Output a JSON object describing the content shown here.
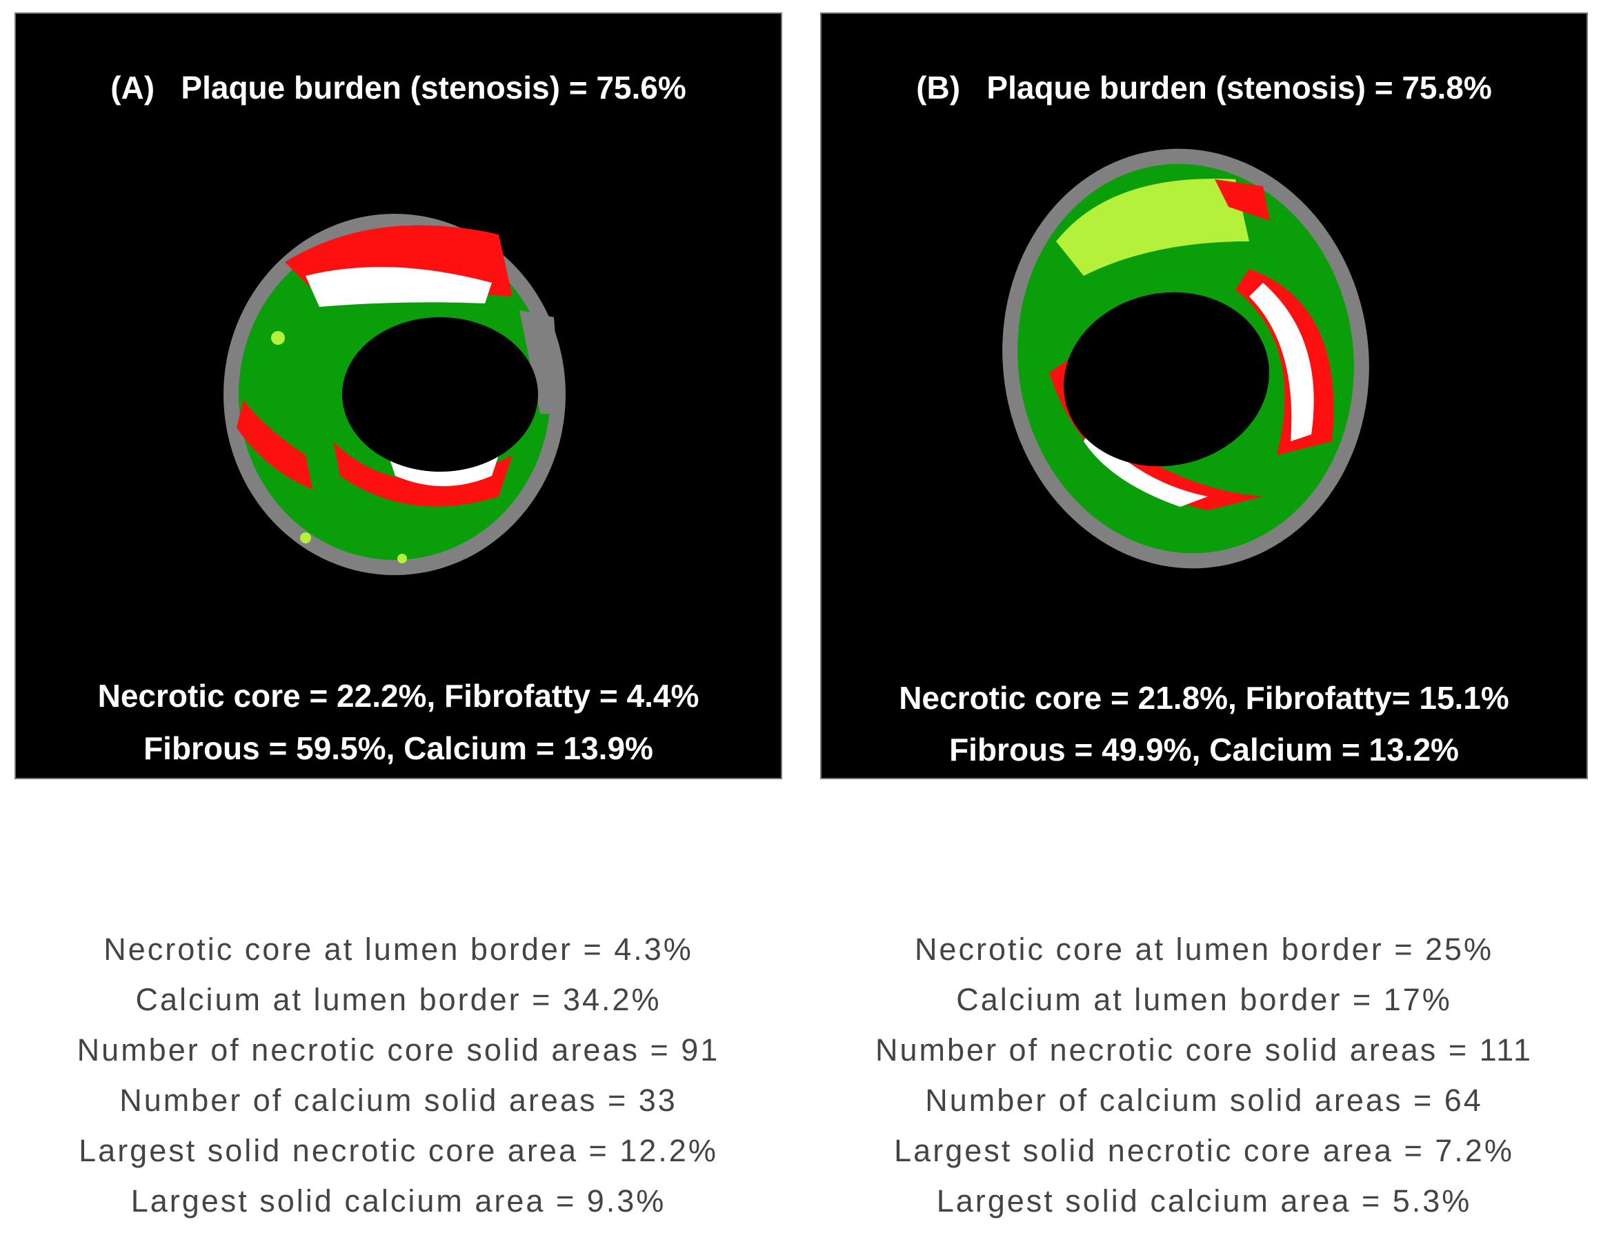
{
  "panels": [
    {
      "title": "(A)   Plaque burden (stenosis) = 75.6%",
      "composition": [
        "Necrotic core = 22.2%, Fibrofatty = 4.4%",
        "Fibrous = 59.5%, Calcium = 13.9%"
      ],
      "stats": [
        "Necrotic core at lumen border = 4.3%",
        "Calcium at lumen border = 34.2%",
        "Number of necrotic core solid areas = 91",
        "Number of calcium solid areas = 33",
        "Largest solid necrotic core area = 12.2%",
        "Largest solid calcium area = 9.3%"
      ]
    },
    {
      "title": "(B)   Plaque burden (stenosis) = 75.8%",
      "composition": [
        "Necrotic core = 21.8%, Fibrofatty= 15.1%",
        "Fibrous = 49.9%, Calcium = 13.2%"
      ],
      "stats": [
        "Necrotic core at lumen border = 25%",
        "Calcium at lumen border = 17%",
        "Number of necrotic core solid areas = 111",
        "Number of calcium solid areas = 64",
        "Largest solid necrotic core area = 7.2%",
        "Largest solid calcium area = 5.3%"
      ]
    }
  ]
}
